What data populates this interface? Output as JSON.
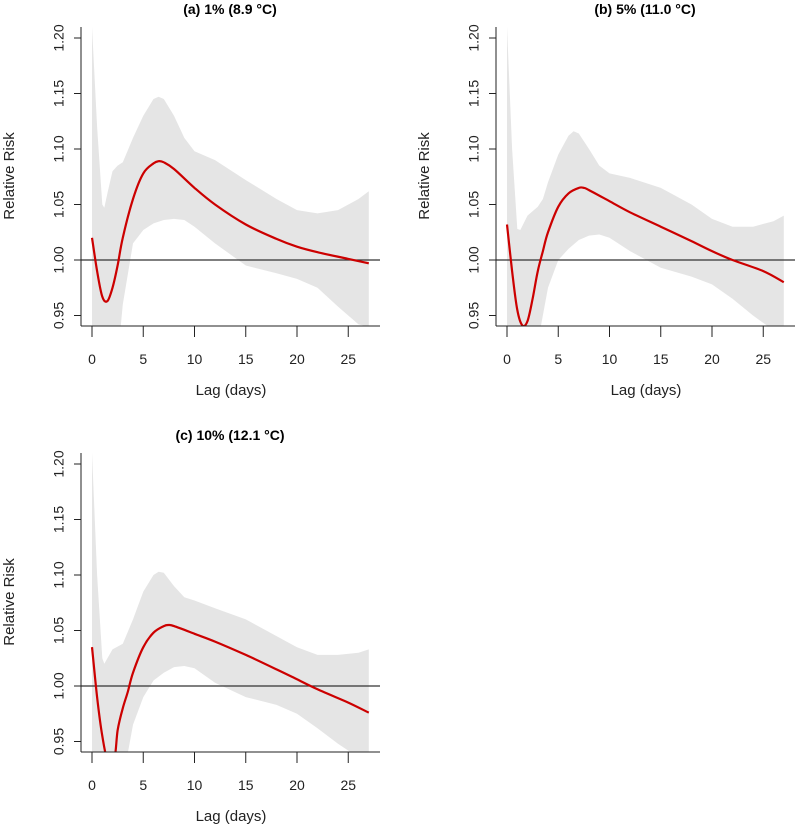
{
  "chart_data": [
    {
      "type": "line",
      "title": "(a) 1% (8.9 °C)",
      "xlabel": "Lag (days)",
      "ylabel": "Relative Risk",
      "xlim": [
        0,
        27
      ],
      "ylim": [
        0.94,
        1.21
      ],
      "xticks": [
        "0",
        "5",
        "10",
        "15",
        "20",
        "25"
      ],
      "yticks": [
        "0.95",
        "1.00",
        "1.05",
        "1.10",
        "1.15",
        "1.20"
      ],
      "reference_line": 1.0,
      "series": [
        {
          "name": "RR",
          "color": "#cc0000",
          "x": [
            0,
            0.5,
            1,
            1.5,
            2,
            2.5,
            3,
            4,
            5,
            6,
            6.5,
            7,
            8,
            10,
            12,
            15,
            18,
            20,
            22,
            25,
            27
          ],
          "y": [
            1.02,
            0.99,
            0.967,
            0.963,
            0.975,
            0.995,
            1.02,
            1.055,
            1.078,
            1.087,
            1.089,
            1.088,
            1.082,
            1.065,
            1.05,
            1.032,
            1.019,
            1.012,
            1.007,
            1.001,
            0.997
          ]
        }
      ],
      "ci_upper": {
        "x": [
          0,
          0.5,
          1,
          1.2,
          1.5,
          2,
          2.5,
          3,
          4,
          5,
          6,
          6.5,
          7,
          8,
          9,
          10,
          12,
          15,
          18,
          20,
          22,
          24,
          26,
          27
        ],
        "y": [
          1.21,
          1.12,
          1.05,
          1.047,
          1.06,
          1.08,
          1.085,
          1.088,
          1.11,
          1.13,
          1.145,
          1.147,
          1.145,
          1.13,
          1.11,
          1.098,
          1.09,
          1.072,
          1.055,
          1.045,
          1.042,
          1.045,
          1.055,
          1.062
        ]
      },
      "ci_lower": {
        "x": [
          0,
          2.8,
          3,
          4,
          5,
          6,
          7,
          8,
          9,
          10,
          12,
          15,
          18,
          20,
          22,
          24,
          26,
          27
        ],
        "y": [
          0.94,
          0.94,
          0.96,
          1.015,
          1.027,
          1.033,
          1.036,
          1.037,
          1.036,
          1.03,
          1.015,
          0.995,
          0.988,
          0.983,
          0.975,
          0.958,
          0.942,
          0.94
        ]
      }
    },
    {
      "type": "line",
      "title": "(b) 5% (11.0 °C)",
      "xlabel": "Lag (days)",
      "ylabel": "Relative Risk",
      "xlim": [
        0,
        27
      ],
      "ylim": [
        0.94,
        1.21
      ],
      "xticks": [
        "0",
        "5",
        "10",
        "15",
        "20",
        "25"
      ],
      "yticks": [
        "0.95",
        "1.00",
        "1.05",
        "1.10",
        "1.15",
        "1.20"
      ],
      "reference_line": 1.0,
      "series": [
        {
          "name": "RR",
          "color": "#cc0000",
          "x": [
            0,
            0.5,
            1,
            1.5,
            2,
            2.5,
            3,
            3.5,
            4,
            5,
            6,
            7,
            7.5,
            8,
            10,
            12,
            15,
            18,
            20,
            22,
            25,
            27
          ],
          "y": [
            1.032,
            0.99,
            0.955,
            0.941,
            0.945,
            0.965,
            0.99,
            1.008,
            1.025,
            1.048,
            1.06,
            1.065,
            1.065,
            1.063,
            1.053,
            1.043,
            1.03,
            1.017,
            1.008,
            1.0,
            0.99,
            0.98
          ]
        }
      ],
      "ci_upper": {
        "x": [
          0,
          0.5,
          1,
          1.3,
          2,
          3,
          3.5,
          4,
          5,
          6,
          6.5,
          7,
          8,
          9,
          10,
          12,
          15,
          18,
          20,
          22,
          24,
          26,
          27
        ],
        "y": [
          1.21,
          1.1,
          1.028,
          1.027,
          1.04,
          1.048,
          1.055,
          1.07,
          1.095,
          1.112,
          1.116,
          1.114,
          1.1,
          1.085,
          1.078,
          1.074,
          1.065,
          1.05,
          1.037,
          1.03,
          1.03,
          1.035,
          1.04
        ]
      },
      "ci_lower": {
        "x": [
          0,
          3.3,
          4,
          5,
          6,
          7,
          8,
          9,
          10,
          12,
          15,
          18,
          20,
          22,
          24,
          25.5,
          27
        ],
        "y": [
          0.94,
          0.94,
          0.975,
          1.0,
          1.01,
          1.018,
          1.022,
          1.023,
          1.02,
          1.008,
          0.993,
          0.985,
          0.978,
          0.965,
          0.95,
          0.94,
          0.94
        ]
      }
    },
    {
      "type": "line",
      "title": "(c) 10% (12.1 °C)",
      "xlabel": "Lag (days)",
      "ylabel": "Relative Risk",
      "xlim": [
        0,
        27
      ],
      "ylim": [
        0.94,
        1.21
      ],
      "xticks": [
        "0",
        "5",
        "10",
        "15",
        "20",
        "25"
      ],
      "yticks": [
        "0.95",
        "1.00",
        "1.05",
        "1.10",
        "1.15",
        "1.20"
      ],
      "reference_line": 1.0,
      "series": [
        {
          "name": "RR",
          "color": "#cc0000",
          "x": [
            0,
            0.5,
            1,
            1.6,
            2.2,
            2.5,
            3,
            3.5,
            4,
            5,
            6,
            7,
            7.5,
            8,
            10,
            12,
            15,
            18,
            20,
            22,
            25,
            27
          ],
          "y": [
            1.035,
            0.99,
            0.955,
            0.93,
            0.935,
            0.96,
            0.98,
            0.995,
            1.012,
            1.035,
            1.048,
            1.054,
            1.055,
            1.054,
            1.047,
            1.04,
            1.028,
            1.015,
            1.006,
            0.997,
            0.985,
            0.976
          ]
        }
      ],
      "ci_upper": {
        "x": [
          0,
          0.5,
          1,
          1.2,
          2,
          3,
          4,
          5,
          6,
          6.5,
          7,
          8,
          9,
          10,
          12,
          15,
          18,
          20,
          22,
          24,
          26,
          27
        ],
        "y": [
          1.21,
          1.1,
          1.025,
          1.02,
          1.033,
          1.038,
          1.06,
          1.085,
          1.1,
          1.103,
          1.102,
          1.09,
          1.08,
          1.077,
          1.07,
          1.06,
          1.045,
          1.035,
          1.028,
          1.028,
          1.03,
          1.033
        ]
      },
      "ci_lower": {
        "x": [
          0,
          3.5,
          4,
          5,
          6,
          7,
          8,
          9,
          10,
          12,
          15,
          18,
          20,
          22,
          24,
          25.3,
          27
        ],
        "y": [
          0.94,
          0.94,
          0.965,
          0.99,
          1.005,
          1.012,
          1.017,
          1.018,
          1.016,
          1.003,
          0.99,
          0.983,
          0.975,
          0.962,
          0.948,
          0.94,
          0.94
        ]
      }
    }
  ],
  "colors": {
    "line": "#cc0000",
    "band": "#e5e5e5",
    "reference": "#333333"
  }
}
